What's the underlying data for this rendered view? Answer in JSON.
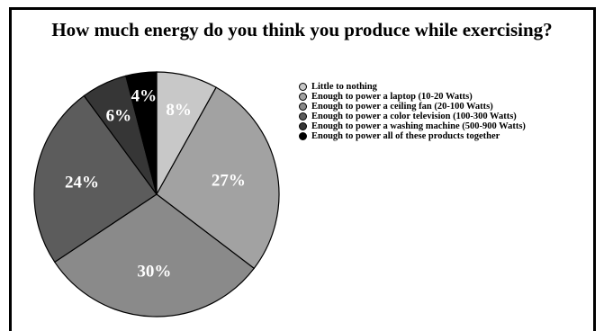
{
  "chart_data": {
    "type": "pie",
    "title": "How much energy do you think you produce while exercising?",
    "slices": [
      {
        "label": "Little to nothing",
        "value": 8,
        "display": "8%",
        "color": "#c8c8c8"
      },
      {
        "label": "Enough to power a laptop (10-20 Watts)",
        "value": 27,
        "display": "27%",
        "color": "#a2a2a2"
      },
      {
        "label": "Enough to power a ceiling fan (20-100 Watts)",
        "value": 30,
        "display": "30%",
        "color": "#8a8a8a"
      },
      {
        "label": "Enough to power a color television (100-300 Watts)",
        "value": 24,
        "display": "24%",
        "color": "#5c5c5c"
      },
      {
        "label": "Enough to power a washing machine (500-900 Watts)",
        "value": 6,
        "display": "6%",
        "color": "#363636"
      },
      {
        "label": "Enough to power all of these products together",
        "value": 4,
        "display": "4%",
        "color": "#000000"
      }
    ],
    "legend_position": "right"
  }
}
